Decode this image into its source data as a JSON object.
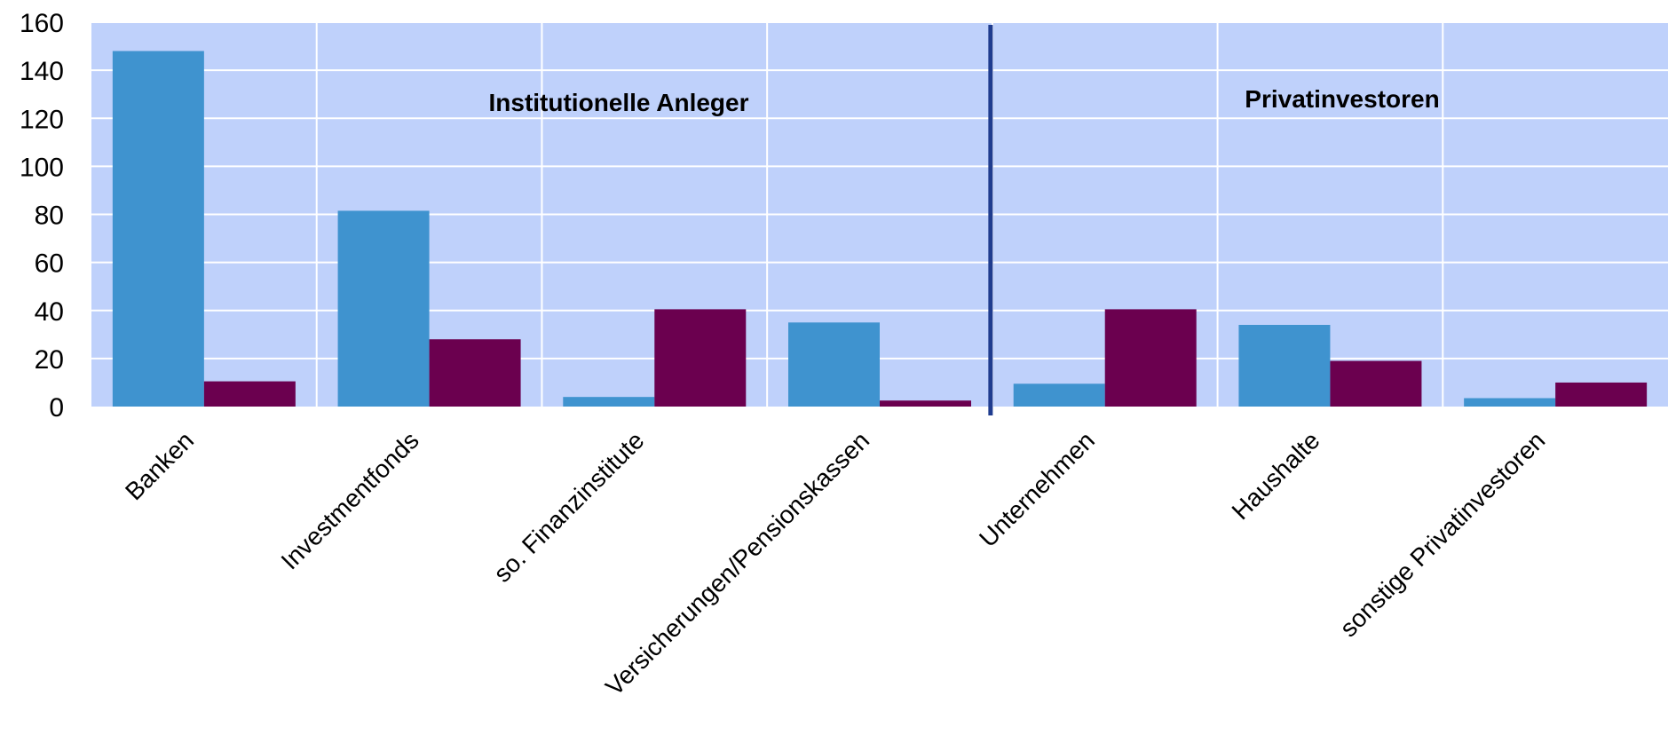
{
  "chart_data": {
    "type": "bar",
    "categories": [
      "Banken",
      "Investmentfonds",
      "so. Finanzinstitute",
      "Versicherungen/Pensionskassen",
      "Unternehmen",
      "Haushalte",
      "sonstige Privatinvestoren"
    ],
    "series": [
      {
        "values": [
          148,
          81.5,
          4,
          35,
          9.5,
          34,
          3.5
        ],
        "color": "#3f93cf"
      },
      {
        "values": [
          10.5,
          28,
          40.5,
          2.5,
          40.5,
          19,
          10
        ],
        "color": "#6b004f"
      }
    ],
    "groups": [
      {
        "label": "Institutionelle Anleger",
        "categories": [
          0,
          1,
          2,
          3
        ]
      },
      {
        "label": "Privatinvestoren",
        "categories": [
          4,
          5,
          6
        ]
      }
    ],
    "yticks": [
      0,
      20,
      40,
      60,
      80,
      100,
      120,
      140,
      160
    ],
    "ylim": [
      0,
      160
    ],
    "grid": true,
    "plot_background": "#bfd1fb",
    "separator_color": "#1f3c8f"
  }
}
